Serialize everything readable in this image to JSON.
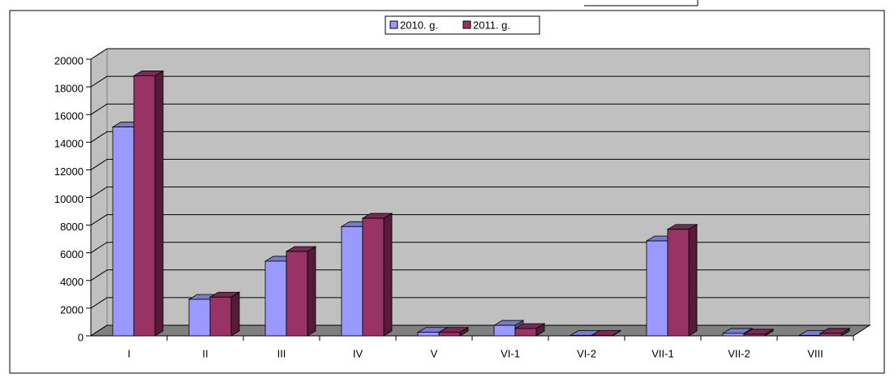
{
  "chart_data": {
    "type": "bar3d",
    "categories": [
      "I",
      "II",
      "III",
      "IV",
      "V",
      "VI-1",
      "VI-2",
      "VII-1",
      "VII-2",
      "VIII"
    ],
    "series": [
      {
        "name": "2010. g.",
        "color": "#9999ff",
        "values": [
          15100,
          2640,
          5400,
          7900,
          250,
          760,
          30,
          6860,
          180,
          30
        ]
      },
      {
        "name": "2011. g.",
        "color": "#993366",
        "values": [
          18800,
          2800,
          6100,
          8500,
          250,
          530,
          30,
          7700,
          120,
          180
        ]
      }
    ],
    "ylim": [
      0,
      20000
    ],
    "yticks": [
      0,
      2000,
      4000,
      6000,
      8000,
      10000,
      12000,
      14000,
      16000,
      18000,
      20000
    ],
    "grid": true,
    "legend": "top"
  }
}
